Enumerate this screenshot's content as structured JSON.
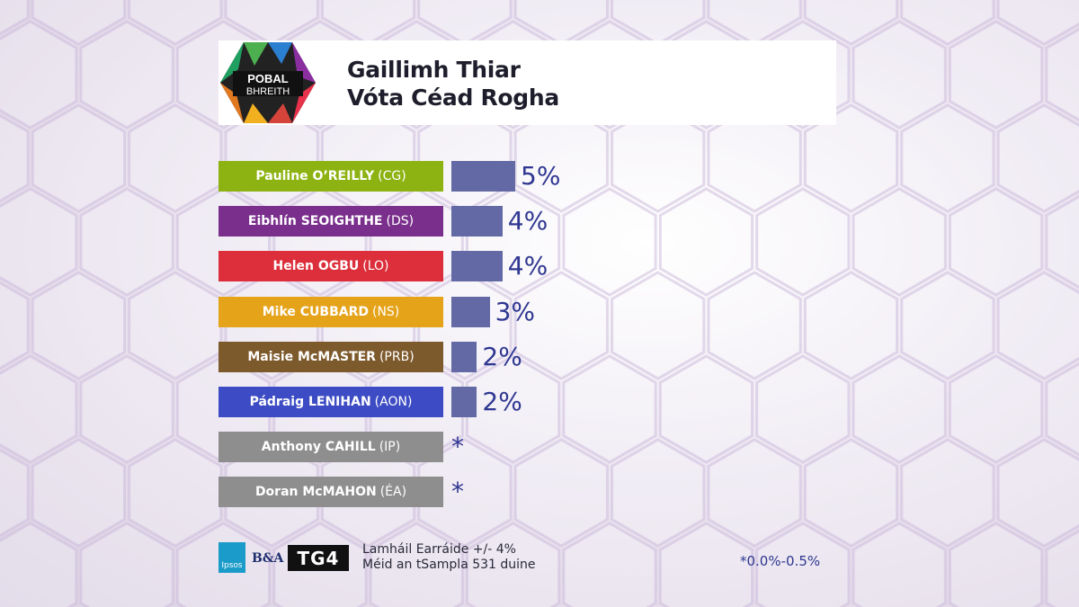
{
  "header": {
    "logo_text_1": "POBAL",
    "logo_text_2": "BHREITH",
    "title_line_1": "Gaillimh Thiar",
    "title_line_2": "Vóta Céad Rogha"
  },
  "chart_data": {
    "type": "bar",
    "orientation": "horizontal",
    "title": "Gaillimh Thiar Vóta Céad Rogha",
    "categories": [
      "Pauline O’REILLY (CG)",
      "Eibhlín SEOIGHTHE (DS)",
      "Helen OGBU (LO)",
      "Mike CUBBARD (NS)",
      "Maisie McMASTER (PRB)",
      "Pádraig LENIHAN (AON)",
      "Anthony CAHILL (IP)",
      "Doran McMAHON (ÉA)"
    ],
    "rows": [
      {
        "name": "Pauline O’REILLY",
        "party": "(CG)",
        "value": 5,
        "label": "5%",
        "color": "#8db312"
      },
      {
        "name": "Eibhlín SEOIGHTHE",
        "party": "(DS)",
        "value": 4,
        "label": "4%",
        "color": "#7a2f8c"
      },
      {
        "name": "Helen OGBU",
        "party": "(LO)",
        "value": 4,
        "label": "4%",
        "color": "#dc2f3b"
      },
      {
        "name": "Mike CUBBARD",
        "party": "(NS)",
        "value": 3,
        "label": "3%",
        "color": "#e5a31a"
      },
      {
        "name": "Maisie McMASTER",
        "party": "(PRB)",
        "value": 2,
        "label": "2%",
        "color": "#7d5a2c"
      },
      {
        "name": "Pádraig LENIHAN",
        "party": "(AON)",
        "value": 2,
        "label": "2%",
        "color": "#3d4cc4"
      },
      {
        "name": "Anthony CAHILL",
        "party": "(IP)",
        "value": 0,
        "label": "*",
        "color": "#8e8e8e"
      },
      {
        "name": "Doran McMAHON",
        "party": "(ÉA)",
        "value": 0,
        "label": "*",
        "color": "#8e8e8e"
      }
    ],
    "bar_color": "#6369a4",
    "value_color": "#2f3791"
  },
  "footer": {
    "ipsos": "Ipsos",
    "ba": "B&A",
    "tg4": "TG4",
    "margin_of_error": "Lamháil Earráide +/- 4%",
    "sample_size": "Méid an tSampla 531 duine",
    "footnote": "*0.0%-0.5%"
  }
}
